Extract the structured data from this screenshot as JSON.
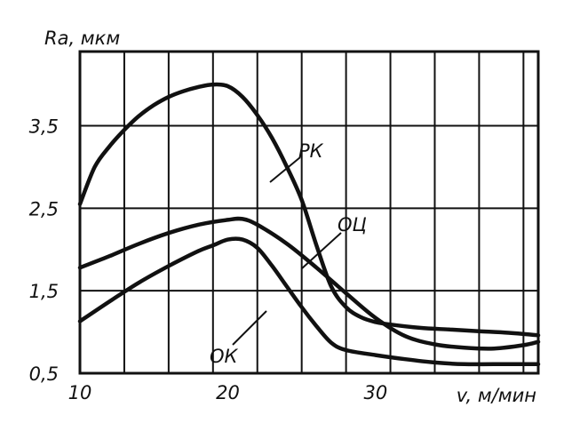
{
  "chart_data": {
    "type": "line",
    "title": "",
    "xlabel": "v, м/мин",
    "ylabel": "Ra, мкм",
    "xlim": [
      10,
      41
    ],
    "ylim": [
      0.5,
      4.4
    ],
    "x_ticks": [
      {
        "value": 10,
        "label": "10"
      },
      {
        "value": 20,
        "label": "20"
      },
      {
        "value": 30,
        "label": "30"
      }
    ],
    "y_ticks": [
      {
        "value": 0.5,
        "label": "0,5"
      },
      {
        "value": 1.5,
        "label": "1,5"
      },
      {
        "value": 2.5,
        "label": "2,5"
      },
      {
        "value": 3.5,
        "label": "3,5"
      }
    ],
    "grid": true,
    "series": [
      {
        "name": "РК",
        "x": [
          10,
          11,
          12,
          13,
          14,
          15,
          16,
          17,
          18,
          19,
          20,
          21,
          22,
          23,
          24,
          25,
          26,
          27,
          28,
          29,
          30,
          31,
          33,
          35,
          37,
          39,
          41
        ],
        "y": [
          2.55,
          3.0,
          3.25,
          3.45,
          3.62,
          3.75,
          3.85,
          3.92,
          3.97,
          4.0,
          3.98,
          3.85,
          3.63,
          3.35,
          3.0,
          2.6,
          2.05,
          1.55,
          1.3,
          1.18,
          1.12,
          1.09,
          1.05,
          1.03,
          1.01,
          0.99,
          0.96
        ]
      },
      {
        "name": "ОЦ",
        "x": [
          10,
          12,
          14,
          16,
          18,
          20,
          21,
          22,
          24,
          26,
          28,
          30,
          32,
          34,
          36,
          38,
          40,
          41
        ],
        "y": [
          1.78,
          1.92,
          2.07,
          2.2,
          2.3,
          2.36,
          2.37,
          2.3,
          2.07,
          1.78,
          1.47,
          1.17,
          0.95,
          0.85,
          0.81,
          0.8,
          0.84,
          0.88
        ]
      },
      {
        "name": "ОК",
        "x": [
          10,
          12,
          14,
          16,
          18,
          19,
          20,
          21,
          22,
          23,
          24,
          25,
          26,
          27,
          28,
          30,
          32,
          34,
          36,
          38,
          41
        ],
        "y": [
          1.13,
          1.37,
          1.6,
          1.8,
          1.98,
          2.05,
          2.12,
          2.12,
          2.02,
          1.8,
          1.55,
          1.3,
          1.07,
          0.87,
          0.78,
          0.72,
          0.67,
          0.63,
          0.61,
          0.61,
          0.61
        ]
      }
    ],
    "curve_labels": [
      "РК",
      "ОЦ",
      "ОК"
    ]
  }
}
